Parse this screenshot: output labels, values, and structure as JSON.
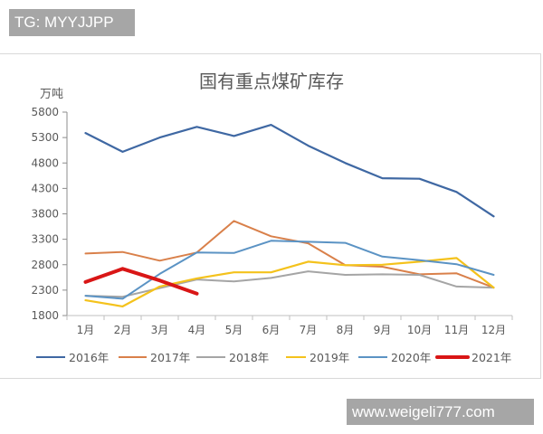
{
  "watermarks": {
    "top": "TG: MYYJJPP",
    "bottom": "www.weigeli777.com"
  },
  "chart_data": {
    "type": "line",
    "title": "国有重点煤矿库存",
    "xlabel": "",
    "ylabel": "万吨",
    "ylim": [
      1800,
      5800
    ],
    "yticks": [
      1800,
      2300,
      2800,
      3300,
      3800,
      4300,
      4800,
      5300,
      5800
    ],
    "grid": false,
    "legend_position": "bottom",
    "categories": [
      "1月",
      "2月",
      "3月",
      "4月",
      "5月",
      "6月",
      "7月",
      "8月",
      "9月",
      "10月",
      "11月",
      "12月"
    ],
    "series": [
      {
        "name": "2016年",
        "color": "#3f68a3",
        "width": 2.2,
        "values": [
          5390,
          5020,
          5300,
          5510,
          5330,
          5550,
          5140,
          4800,
          4500,
          4490,
          4230,
          3750
        ]
      },
      {
        "name": "2017年",
        "color": "#d9804a",
        "width": 2,
        "values": [
          3020,
          3050,
          2880,
          3040,
          3660,
          3360,
          3220,
          2790,
          2760,
          2610,
          2630,
          2350
        ]
      },
      {
        "name": "2018年",
        "color": "#a5a5a5",
        "width": 2,
        "values": [
          2190,
          2170,
          2340,
          2510,
          2470,
          2540,
          2670,
          2600,
          2610,
          2600,
          2370,
          2350
        ]
      },
      {
        "name": "2019年",
        "color": "#f4c21c",
        "width": 2.2,
        "values": [
          2100,
          1980,
          2370,
          2530,
          2650,
          2650,
          2860,
          2790,
          2800,
          2860,
          2930,
          2350
        ]
      },
      {
        "name": "2020年",
        "color": "#5b93c4",
        "width": 2,
        "values": [
          2190,
          2130,
          2620,
          3040,
          3030,
          3270,
          3250,
          3230,
          2960,
          2890,
          2810,
          2600
        ]
      },
      {
        "name": "2021年",
        "color": "#d91616",
        "width": 4,
        "values": [
          2460,
          2720,
          2490,
          2230
        ]
      }
    ]
  }
}
